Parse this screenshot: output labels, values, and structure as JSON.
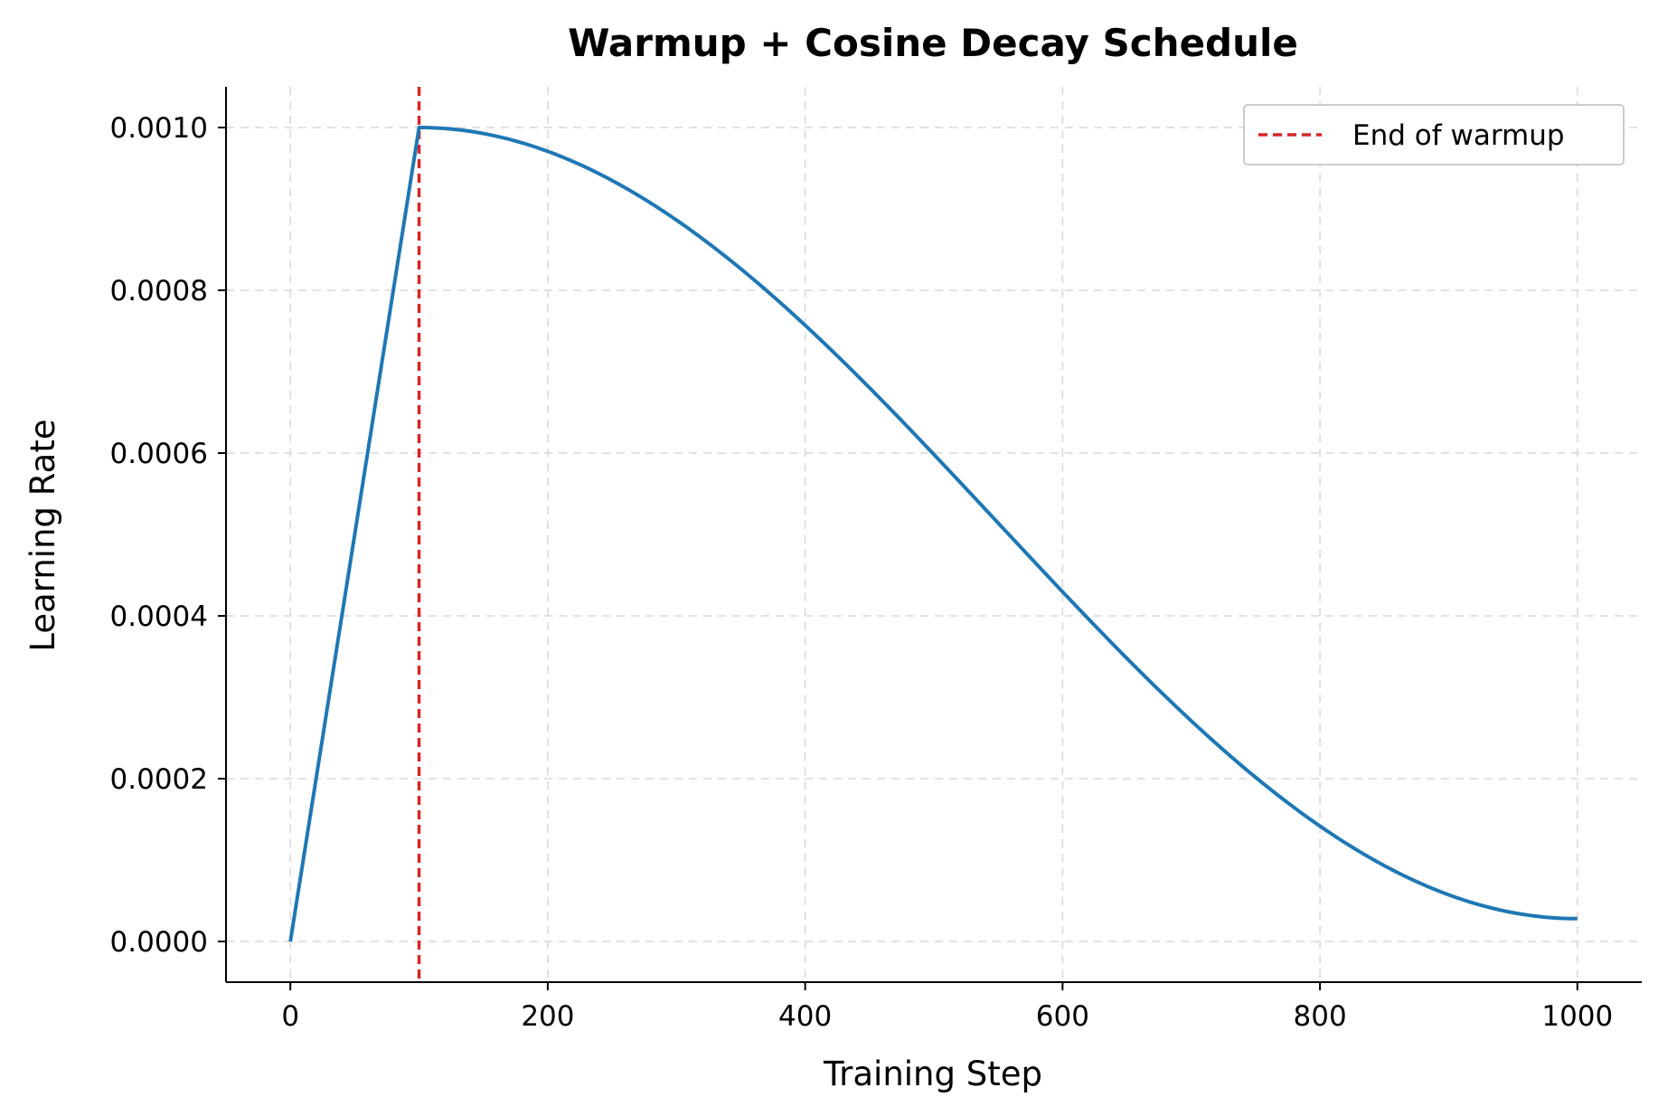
{
  "chart_data": {
    "type": "line",
    "title": "Warmup + Cosine Decay Schedule",
    "xlabel": "Training Step",
    "ylabel": "Learning Rate",
    "xlim": [
      -50,
      1050
    ],
    "ylim": [
      -5e-05,
      0.00105
    ],
    "xticks": [
      0,
      200,
      400,
      600,
      800,
      1000
    ],
    "xtick_labels": [
      "0",
      "200",
      "400",
      "600",
      "800",
      "1000"
    ],
    "yticks": [
      0,
      0.0002,
      0.0004,
      0.0006,
      0.0008,
      0.001
    ],
    "ytick_labels": [
      "0.0000",
      "0.0002",
      "0.0004",
      "0.0006",
      "0.0008",
      "0.0010"
    ],
    "grid": true,
    "legend_position": "top-right",
    "series": [
      {
        "color": "#1f77b4",
        "x": [
          0,
          100,
          150,
          200,
          250,
          300,
          350,
          400,
          450,
          500,
          550,
          600,
          650,
          700,
          750,
          800,
          850,
          900,
          950,
          1000
        ],
        "y": [
          0,
          0.001,
          0.000993,
          0.000973,
          0.000941,
          0.000898,
          0.000845,
          0.000784,
          0.000717,
          0.000646,
          0.000573,
          0.0005,
          0.000427,
          0.000354,
          0.000283,
          0.000216,
          0.000155,
          0.000102,
          5.9e-05,
          2.8e-05
        ]
      }
    ],
    "reference_lines": [
      {
        "name": "End of warmup",
        "orientation": "vertical",
        "x": 100,
        "color": "#d62728",
        "style": "dashed"
      }
    ]
  }
}
